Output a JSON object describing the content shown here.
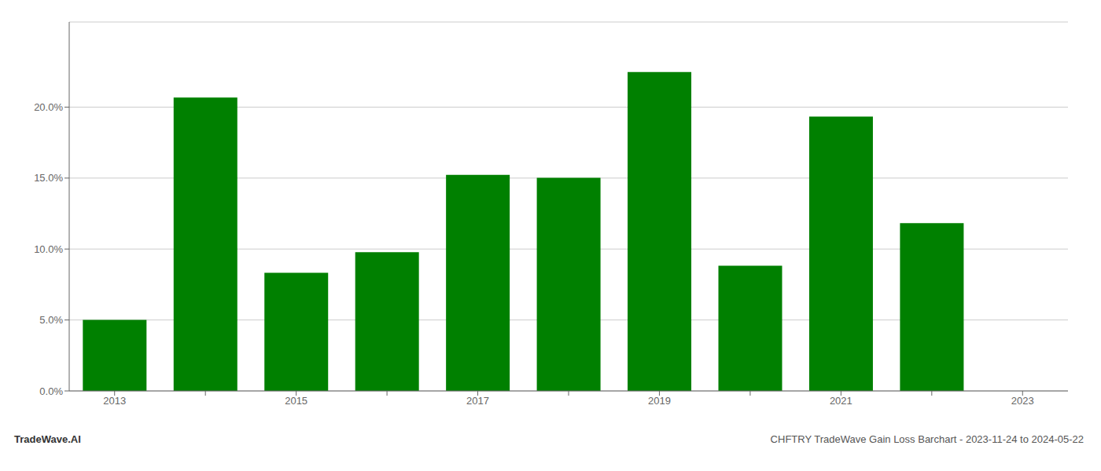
{
  "chart_data": {
    "type": "bar",
    "categories": [
      "2013",
      null,
      "2015",
      null,
      "2017",
      null,
      "2019",
      null,
      "2021",
      null,
      "2023"
    ],
    "values": [
      0.0501,
      0.2068,
      0.0832,
      0.0978,
      0.1523,
      0.1502,
      0.2248,
      0.0882,
      0.1933,
      0.1182,
      null
    ],
    "color": "#008000",
    "ylim": [
      0,
      0.26
    ],
    "yticks": [
      {
        "value": 0.0,
        "label": "0.0%"
      },
      {
        "value": 0.05,
        "label": "5.0%"
      },
      {
        "value": 0.1,
        "label": "10.0%"
      },
      {
        "value": 0.15,
        "label": "15.0%"
      },
      {
        "value": 0.2,
        "label": "20.0%"
      }
    ],
    "grid": true,
    "annotations": [
      "TradeWave.AI",
      "CHFTRY TradeWave Gain Loss Barchart - 2023-11-24 to 2024-05-22"
    ]
  }
}
